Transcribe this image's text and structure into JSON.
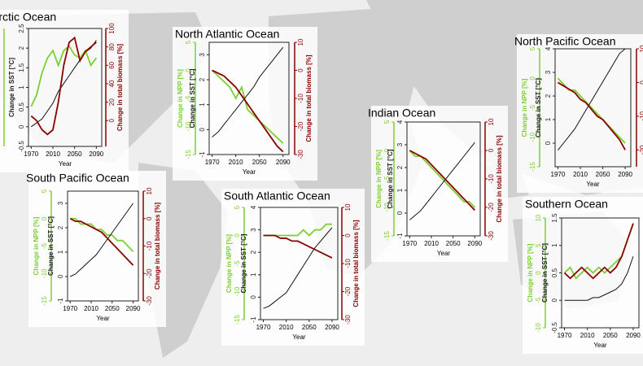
{
  "chart_data": [
    {
      "type": "line",
      "title": "Arctic Ocean",
      "xlabel": "Year",
      "ylabel": "Change in SST [°C]",
      "y2label": "Change in total biomass [%]",
      "x": [
        1970,
        1980,
        1990,
        2000,
        2010,
        2020,
        2030,
        2040,
        2050,
        2060,
        2070,
        2080,
        2090
      ],
      "xlim": [
        1965,
        2100
      ],
      "xticks": [
        1970,
        2010,
        2050,
        2090
      ],
      "ylim": [
        -0.5,
        2.5
      ],
      "yticks": [
        -0.5,
        0,
        0.5,
        1,
        1.5,
        2,
        2.5
      ],
      "y2lim": [
        -28,
        100
      ],
      "y2ticks": [
        0,
        20,
        40,
        60,
        80,
        100
      ],
      "y3lim": [
        -20,
        60
      ],
      "series": [
        {
          "color": "#7ccf32",
          "axis": "y3",
          "values": [
            7,
            15,
            30,
            40,
            45,
            35,
            45,
            48,
            42,
            40,
            45,
            35,
            40
          ]
        },
        {
          "color": "#111111",
          "values": [
            0,
            0.1,
            0.2,
            0.4,
            0.6,
            0.9,
            1.1,
            1.3,
            1.5,
            1.7,
            1.9,
            2.0,
            2.2
          ]
        },
        {
          "color": "#8b0000",
          "axis": "y2",
          "values": [
            5,
            0,
            -10,
            -15,
            -10,
            20,
            60,
            85,
            90,
            65,
            75,
            80,
            85
          ]
        }
      ]
    },
    {
      "type": "line",
      "title": "North Atlantic Ocean",
      "xlabel": "Year",
      "ylabel": "Change in SST [°C]",
      "y2label": "Change in total biomass [%]",
      "y3label": "Change in NPP [%]",
      "x": [
        1970,
        1980,
        1990,
        2000,
        2010,
        2020,
        2030,
        2040,
        2050,
        2060,
        2070,
        2080,
        2090
      ],
      "xlim": [
        1965,
        2100
      ],
      "xticks": [
        1970,
        2010,
        2050,
        2090
      ],
      "ylim": [
        -1,
        3.5
      ],
      "yticks": [
        -1,
        0,
        1,
        2,
        3
      ],
      "y2lim": [
        -30,
        10
      ],
      "y2ticks": [
        -30,
        -20,
        -10,
        0,
        10
      ],
      "y3lim": [
        -15,
        5
      ],
      "y3ticks": [
        -15,
        -10,
        -5,
        0,
        5
      ],
      "series": [
        {
          "color": "#7ccf32",
          "axis": "y3",
          "values": [
            0,
            -1,
            -2,
            -3,
            -5,
            -3,
            -7,
            -8,
            -9,
            -10,
            -11,
            -12,
            -13
          ]
        },
        {
          "color": "#111111",
          "values": [
            -0.3,
            -0.1,
            0.2,
            0.5,
            0.8,
            1.1,
            1.4,
            1.7,
            2.1,
            2.4,
            2.7,
            3.0,
            3.3
          ]
        },
        {
          "color": "#8b0000",
          "axis": "y2",
          "values": [
            0,
            -1,
            -2,
            -4,
            -6,
            -9,
            -12,
            -15,
            -18,
            -21,
            -24,
            -27,
            -29
          ]
        }
      ]
    },
    {
      "type": "line",
      "title": "Indian Ocean",
      "xlabel": "Year",
      "ylabel": "Change in SST [°C]",
      "y2label": "Change in total biomass [%]",
      "y3label": "Change in NPP [%]",
      "x": [
        1970,
        1980,
        1990,
        2000,
        2010,
        2020,
        2030,
        2040,
        2050,
        2060,
        2070,
        2080,
        2090
      ],
      "xlim": [
        1965,
        2100
      ],
      "xticks": [
        1970,
        2010,
        2050,
        2090
      ],
      "ylim": [
        -1,
        4
      ],
      "yticks": [
        -1,
        0,
        1,
        2,
        3,
        4
      ],
      "y2lim": [
        -30,
        10
      ],
      "y2ticks": [
        -30,
        -20,
        -10,
        0,
        10
      ],
      "y3lim": [
        -15,
        5
      ],
      "y3ticks": [
        -15,
        -10,
        -5,
        0,
        5
      ],
      "series": [
        {
          "color": "#7ccf32",
          "axis": "y3",
          "values": [
            0,
            -1,
            -1,
            -2,
            -3,
            -4,
            -5,
            -6,
            -7,
            -8,
            -9,
            -9,
            -10
          ]
        },
        {
          "color": "#111111",
          "values": [
            -0.3,
            -0.1,
            0.1,
            0.4,
            0.7,
            1.0,
            1.3,
            1.6,
            1.9,
            2.2,
            2.5,
            2.8,
            3.1
          ]
        },
        {
          "color": "#8b0000",
          "axis": "y2",
          "values": [
            0,
            -1,
            -2,
            -3,
            -5,
            -7,
            -9,
            -11,
            -13,
            -15,
            -17,
            -19,
            -21
          ]
        }
      ]
    },
    {
      "type": "line",
      "title": "North Pacific Ocean",
      "xlabel": "Year",
      "ylabel": "Change in SST [°C]",
      "y2label": "Change in total biomass [%]",
      "y3label": "Change in NPP [%]",
      "x": [
        1970,
        1980,
        1990,
        2000,
        2010,
        2020,
        2030,
        2040,
        2050,
        2060,
        2070,
        2080,
        2090
      ],
      "xlim": [
        1965,
        2100
      ],
      "xticks": [
        1970,
        2010,
        2050,
        2090
      ],
      "ylim": [
        -1,
        4
      ],
      "yticks": [
        0,
        1,
        2,
        3,
        4
      ],
      "y2lim": [
        -25,
        10
      ],
      "y2ticks": [
        -20,
        -10,
        0,
        10
      ],
      "y3lim": [
        -15,
        5
      ],
      "y3ticks": [
        -15,
        -10,
        -5,
        0,
        5
      ],
      "series": [
        {
          "color": "#7ccf32",
          "axis": "y3",
          "values": [
            0,
            -1,
            -2,
            -2,
            -3,
            -4,
            -5,
            -6,
            -7,
            -8,
            -9,
            -10,
            -11
          ]
        },
        {
          "color": "#111111",
          "values": [
            -0.3,
            0,
            0.3,
            0.6,
            1,
            1.4,
            1.8,
            2.2,
            2.6,
            3,
            3.4,
            3.8,
            4
          ]
        },
        {
          "color": "#8b0000",
          "axis": "y2",
          "values": [
            0,
            -1,
            -2,
            -3,
            -5,
            -6,
            -8,
            -10,
            -11,
            -13,
            -15,
            -17,
            -20
          ]
        }
      ]
    },
    {
      "type": "line",
      "title": "South Pacific Ocean",
      "xlabel": "Year",
      "ylabel": "Change in SST [°C]",
      "y2label": "Change in total biomass [%]",
      "y3label": "Change in NPP [%]",
      "x": [
        1970,
        1980,
        1990,
        2000,
        2010,
        2020,
        2030,
        2040,
        2050,
        2060,
        2070,
        2080,
        2090
      ],
      "xlim": [
        1965,
        2100
      ],
      "xticks": [
        1970,
        2010,
        2050,
        2090
      ],
      "ylim": [
        -1,
        3.5
      ],
      "yticks": [
        -1,
        0,
        1,
        2,
        3
      ],
      "y2lim": [
        -30,
        10
      ],
      "y2ticks": [
        -30,
        -20,
        -10,
        0,
        10
      ],
      "y3lim": [
        -15,
        5
      ],
      "y3ticks": [
        -15,
        -10,
        -5,
        0,
        5
      ],
      "series": [
        {
          "color": "#7ccf32",
          "axis": "y3",
          "values": [
            0,
            0,
            -1,
            -1,
            -1,
            -2,
            -2,
            -3,
            -3,
            -4,
            -4,
            -5,
            -6
          ]
        },
        {
          "color": "#111111",
          "values": [
            0,
            0.1,
            0.3,
            0.5,
            0.7,
            0.9,
            1.2,
            1.5,
            1.8,
            2.1,
            2.4,
            2.7,
            3.0
          ]
        },
        {
          "color": "#8b0000",
          "axis": "y2",
          "values": [
            0,
            -1,
            -1,
            -2,
            -3,
            -4,
            -5,
            -7,
            -9,
            -11,
            -13,
            -15,
            -17
          ]
        }
      ]
    },
    {
      "type": "line",
      "title": "South Atlantic Ocean",
      "xlabel": "Year",
      "ylabel": "Change in SST [°C]",
      "y2label": "Change in total biomass [%]",
      "y3label": "Change in NPP [%]",
      "x": [
        1970,
        1980,
        1990,
        2000,
        2010,
        2020,
        2030,
        2040,
        2050,
        2060,
        2070,
        2080,
        2090
      ],
      "xlim": [
        1965,
        2100
      ],
      "xticks": [
        1970,
        2010,
        2050,
        2090
      ],
      "ylim": [
        -1,
        4
      ],
      "yticks": [
        -1,
        0,
        1,
        2,
        3,
        4
      ],
      "y2lim": [
        -30,
        10
      ],
      "y2ticks": [
        -30,
        -20,
        -10,
        0,
        10
      ],
      "y3lim": [
        -15,
        5
      ],
      "y3ticks": [
        -15,
        -10,
        -5,
        0,
        5
      ],
      "series": [
        {
          "color": "#7ccf32",
          "axis": "y3",
          "values": [
            0,
            0,
            0,
            0,
            0,
            0,
            0,
            1,
            0,
            1,
            1,
            2,
            2
          ]
        },
        {
          "color": "#111111",
          "values": [
            -0.5,
            -0.4,
            -0.2,
            0,
            0.2,
            0.6,
            1.0,
            1.4,
            1.8,
            2.2,
            2.5,
            2.8,
            3.1
          ]
        },
        {
          "color": "#8b0000",
          "axis": "y2",
          "values": [
            0,
            0,
            0,
            -1,
            -1,
            -2,
            -2,
            -3,
            -4,
            -5,
            -6,
            -7,
            -8
          ]
        }
      ]
    },
    {
      "type": "line",
      "title": "Southern Ocean",
      "xlabel": "Year",
      "ylabel": "Change in SST [°C]",
      "y3label": "Change in NPP [%]",
      "x": [
        1970,
        1980,
        1990,
        2000,
        2010,
        2020,
        2030,
        2040,
        2050,
        2060,
        2070,
        2080,
        2090
      ],
      "xlim": [
        1965,
        2100
      ],
      "xticks": [
        1970,
        2010,
        2050,
        2090
      ],
      "ylim": [
        -0.5,
        1.5
      ],
      "yticks": [
        -0.5,
        0,
        0.5,
        1,
        1.5
      ],
      "y2lim": [
        -10,
        10
      ],
      "y3lim": [
        -10,
        10
      ],
      "y3ticks": [
        -10,
        -5,
        0,
        5,
        10
      ],
      "series": [
        {
          "color": "#7ccf32",
          "axis": "y3",
          "values": [
            0,
            1,
            -1,
            0,
            1,
            0,
            1,
            0,
            1,
            2,
            3,
            6,
            9
          ]
        },
        {
          "color": "#111111",
          "values": [
            0,
            0,
            0,
            0,
            0,
            0.05,
            0.05,
            0.1,
            0.15,
            0.2,
            0.3,
            0.5,
            0.8
          ]
        },
        {
          "color": "#8b0000",
          "axis": "y2",
          "values": [
            0,
            -1,
            0,
            1,
            0,
            -1,
            0,
            1,
            0,
            1,
            3,
            6,
            9
          ]
        }
      ]
    }
  ]
}
